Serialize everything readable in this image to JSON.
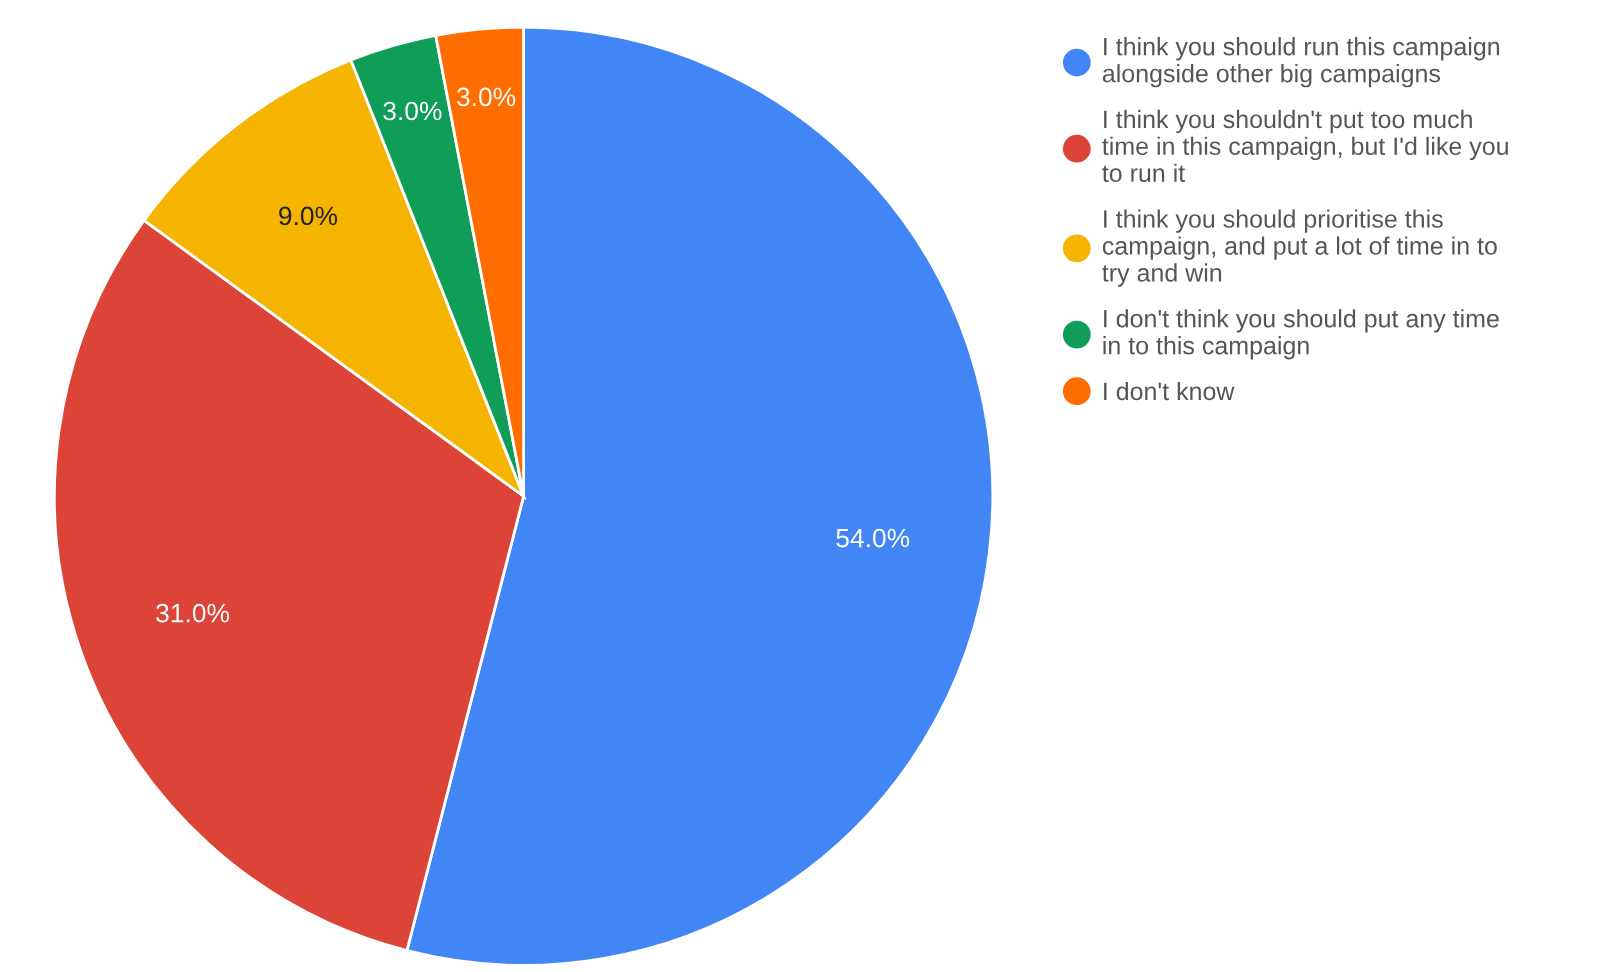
{
  "chart_data": {
    "type": "pie",
    "categories": [
      "I think you should run this campaign alongside other big campaigns",
      "I think you shouldn't put too much time in this campaign, but I'd like you to run it",
      "I think you should prioritise this campaign, and put a lot of time in to try and win",
      "I don't think you should put any time in to this campaign",
      "I don't know"
    ],
    "values": [
      54,
      31,
      9,
      3,
      3
    ],
    "colors": [
      "#4285f4",
      "#db4437",
      "#f4b400",
      "#0f9d58",
      "#ff6d01"
    ],
    "value_labels": [
      "54.0%",
      "31.0%",
      "9.0%",
      "3.0%",
      "3.0%"
    ],
    "legend": "right"
  }
}
